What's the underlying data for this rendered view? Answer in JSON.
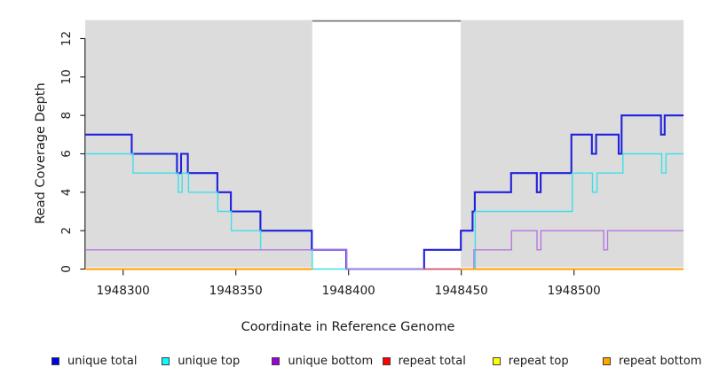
{
  "chart_data": {
    "type": "line",
    "subtype": "step-coverage",
    "title": "",
    "xlabel": "Coordinate in Reference Genome",
    "ylabel": "Read Coverage Depth",
    "x_ticks": [
      1948300,
      1948350,
      1948400,
      1948450,
      1948500
    ],
    "y_ticks": [
      0,
      2,
      4,
      6,
      8,
      10,
      12
    ],
    "xlim": [
      1948283.2,
      1948548.6
    ],
    "ylim": [
      0,
      12.96
    ],
    "grid": false,
    "legend_position": "bottom",
    "background_shading": {
      "color": "#dcdcdc",
      "regions": [
        [
          1948283.2,
          1948383.9
        ],
        [
          1948449.8,
          1948548.6
        ]
      ],
      "gap_top_line_color": "#7a7a7a"
    },
    "series": [
      {
        "name": "unique total",
        "color": "#2020dd",
        "legend_color": "#0000e6",
        "width": 2.1,
        "runs": [
          {
            "points": [
              [
                1948283.2,
                7
              ],
              [
                1948303.8,
                6
              ],
              [
                1948323.9,
                5
              ],
              [
                1948325.7,
                6
              ],
              [
                1948328.7,
                5
              ],
              [
                1948341.8,
                4
              ],
              [
                1948347.8,
                3
              ],
              [
                1948360.9,
                2
              ],
              [
                1948383.7,
                1
              ],
              [
                1948399.0,
                0
              ],
              [
                1948433.5,
                1
              ],
              [
                1948449.8,
                2
              ],
              [
                1948455.0,
                3
              ],
              [
                1948456.0,
                4
              ],
              [
                1948472.1,
                5
              ],
              [
                1948483.5,
                4
              ],
              [
                1948485.2,
                5
              ],
              [
                1948498.8,
                7
              ],
              [
                1948507.9,
                6
              ],
              [
                1948509.8,
                7
              ],
              [
                1948519.8,
                6
              ],
              [
                1948521.1,
                8
              ],
              [
                1948538.6,
                7
              ],
              [
                1948540.2,
                8
              ]
            ],
            "end": 1948548.6
          }
        ]
      },
      {
        "name": "unique top",
        "color": "#3edfe9",
        "legend_color": "#00ffff",
        "width": 1.4,
        "runs": [
          {
            "points": [
              [
                1948283.2,
                6
              ],
              [
                1948304.4,
                5
              ],
              [
                1948324.5,
                4
              ],
              [
                1948326.2,
                5
              ],
              [
                1948329.0,
                4
              ],
              [
                1948342.0,
                3
              ],
              [
                1948348.0,
                2
              ],
              [
                1948361.0,
                1
              ],
              [
                1948383.9,
                0
              ],
              [
                1948456.2,
                3
              ],
              [
                1948499.2,
                5
              ],
              [
                1948508.2,
                4
              ],
              [
                1948510.2,
                5
              ],
              [
                1948521.7,
                6
              ],
              [
                1948538.9,
                5
              ],
              [
                1948540.8,
                6
              ]
            ],
            "end": 1948548.6
          }
        ]
      },
      {
        "name": "unique bottom",
        "color": "#b678e0",
        "legend_color": "#9c00dd",
        "width": 1.4,
        "runs": [
          {
            "points": [
              [
                1948283.2,
                1
              ],
              [
                1948399.2,
                0
              ],
              [
                1948455.6,
                1
              ],
              [
                1948472.3,
                2
              ],
              [
                1948483.6,
                1
              ],
              [
                1948485.3,
                2
              ],
              [
                1948513.2,
                1
              ],
              [
                1948514.9,
                2
              ]
            ],
            "end": 1948548.6
          }
        ]
      },
      {
        "name": "repeat total",
        "color": "#dd5060",
        "legend_color": "#ff0000",
        "width": 1.4,
        "runs": [
          {
            "points": [
              [
                1948433.3,
                0
              ]
            ],
            "end": 1948449.8
          }
        ]
      },
      {
        "name": "repeat top",
        "color": "#ffff33",
        "legend_color": "#ffff00",
        "width": 1.4,
        "runs": [
          {
            "points": [
              [
                1948283.2,
                0
              ]
            ],
            "end": 1948383.9
          },
          {
            "points": [
              [
                1948449.8,
                0
              ]
            ],
            "end": 1948548.6
          }
        ]
      },
      {
        "name": "repeat bottom",
        "color": "#ff9d00",
        "legend_color": "#ffa500",
        "width": 2.0,
        "runs": [
          {
            "points": [
              [
                1948283.2,
                0
              ]
            ],
            "end": 1948383.9
          },
          {
            "points": [
              [
                1948449.8,
                0
              ]
            ],
            "end": 1948548.6
          }
        ]
      }
    ],
    "legend": [
      {
        "label": "unique total",
        "color": "#0000e6"
      },
      {
        "label": "unique top",
        "color": "#00ffff"
      },
      {
        "label": "unique bottom",
        "color": "#9c00dd"
      },
      {
        "label": "repeat total",
        "color": "#ff0000"
      },
      {
        "label": "repeat top",
        "color": "#ffff00"
      },
      {
        "label": "repeat bottom",
        "color": "#ffa500"
      }
    ]
  }
}
